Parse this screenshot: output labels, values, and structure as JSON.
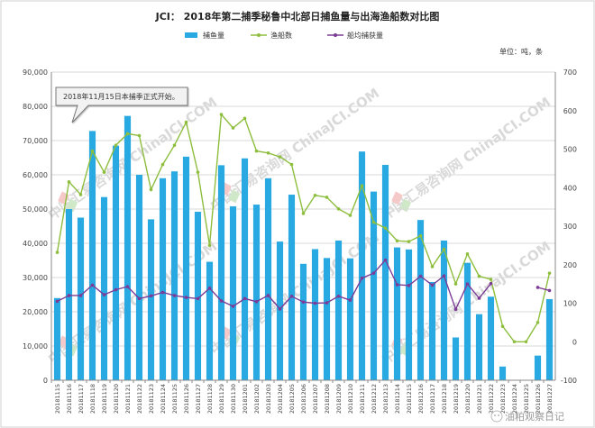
{
  "chart_data": {
    "type": "bar+line",
    "title": "JCI： 2018年第二捕季秘鲁中北部日捕鱼量与出海渔船数对比图",
    "unit_label": "单位：吨，条",
    "annotation": "2018年11月15日本捕季正式开始。",
    "watermark": "中国汇易咨询网 ChinaJCI.COM",
    "corner_text": "油粕观察日记",
    "legend_position": "top",
    "y_left": {
      "ticks": [
        "0",
        "10,000",
        "20,000",
        "30,000",
        "40,000",
        "50,000",
        "60,000",
        "70,000",
        "80,000",
        "90,000"
      ],
      "range": [
        0,
        90000
      ]
    },
    "y_right": {
      "ticks": [
        "-100",
        "0",
        "100",
        "200",
        "300",
        "400",
        "500",
        "600",
        "700"
      ],
      "range": [
        -100,
        700
      ]
    },
    "categories": [
      "20181115",
      "20181116",
      "20181117",
      "20181118",
      "20181119",
      "20181120",
      "20181121",
      "20181122",
      "20181123",
      "20181124",
      "20181125",
      "20181126",
      "20181127",
      "20181128",
      "20181129",
      "20181130",
      "20181201",
      "20181202",
      "20181203",
      "20181204",
      "20181205",
      "20181206",
      "20181207",
      "20181208",
      "20181209",
      "20181210",
      "20181211",
      "20181212",
      "20181213",
      "20181214",
      "20181215",
      "20181216",
      "20181217",
      "20181218",
      "20181219",
      "20181220",
      "20181221",
      "20181222",
      "20181223",
      "20181224",
      "20181225",
      "20181226",
      "20181227"
    ],
    "series": [
      {
        "name": "捕鱼量",
        "type": "bar",
        "axis": "left",
        "color": "#29a9e1",
        "values": [
          24000,
          50000,
          47500,
          72800,
          53500,
          68500,
          77200,
          60000,
          47000,
          59000,
          61000,
          65300,
          49200,
          34600,
          62800,
          50800,
          64800,
          51300,
          59000,
          40500,
          54200,
          34000,
          38300,
          35700,
          40800,
          35600,
          66800,
          55100,
          62900,
          38800,
          38200,
          46800,
          28700,
          40800,
          12500,
          34300,
          19300,
          24400,
          4000,
          0,
          0,
          7200,
          23700
        ]
      },
      {
        "name": "渔船数",
        "type": "line",
        "axis": "right",
        "color": "#8dbe3e",
        "values": [
          232,
          415,
          382,
          495,
          440,
          510,
          540,
          535,
          395,
          460,
          510,
          570,
          440,
          250,
          590,
          555,
          580,
          495,
          490,
          480,
          460,
          333,
          380,
          375,
          345,
          328,
          405,
          310,
          295,
          262,
          260,
          275,
          195,
          240,
          150,
          228,
          170,
          162,
          40,
          0,
          0,
          50,
          178
        ]
      },
      {
        "name": "船均捕获量",
        "type": "line",
        "axis": "right",
        "color": "#7b3b96",
        "values": [
          105,
          120,
          120,
          147,
          122,
          135,
          143,
          112,
          119,
          128,
          120,
          115,
          112,
          139,
          106,
          92,
          112,
          104,
          120,
          85,
          118,
          103,
          100,
          101,
          118,
          108,
          165,
          178,
          212,
          148,
          146,
          170,
          147,
          171,
          84,
          150,
          113,
          151,
          null,
          null,
          null,
          141,
          133
        ]
      }
    ]
  }
}
